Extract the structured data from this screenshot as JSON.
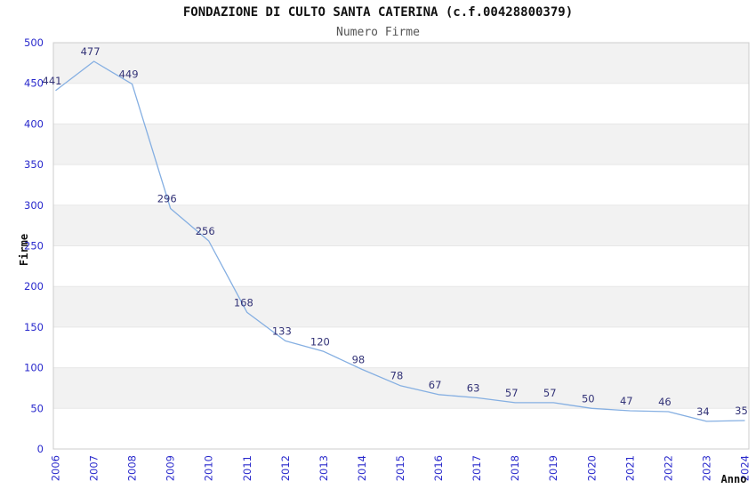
{
  "header": {
    "title": "FONDAZIONE DI CULTO SANTA CATERINA (c.f.00428800379)",
    "subtitle": "Numero Firme"
  },
  "chart_data": {
    "type": "line",
    "title": "FONDAZIONE DI CULTO SANTA CATERINA (c.f.00428800379)",
    "subtitle": "Numero Firme",
    "xlabel": "Anno",
    "ylabel": "Firme",
    "categories": [
      "2006",
      "2007",
      "2008",
      "2009",
      "2010",
      "2011",
      "2012",
      "2013",
      "2014",
      "2015",
      "2016",
      "2017",
      "2018",
      "2019",
      "2020",
      "2021",
      "2022",
      "2023",
      "2024"
    ],
    "values": [
      441,
      477,
      449,
      296,
      256,
      168,
      133,
      120,
      98,
      78,
      67,
      63,
      57,
      57,
      50,
      47,
      46,
      34,
      35
    ],
    "ylim": [
      0,
      500
    ],
    "ytick_step": 50,
    "grid": "horizontal-bands",
    "legend": "none",
    "data_labels_visible": true,
    "colors": {
      "line": "#85afe2",
      "tick_label": "#2929cc",
      "data_label": "#333377",
      "band": "#f2f2f2",
      "grid": "#e7e7e7",
      "border": "#cccccc",
      "title": "#111111",
      "subtitle": "#555555"
    }
  }
}
